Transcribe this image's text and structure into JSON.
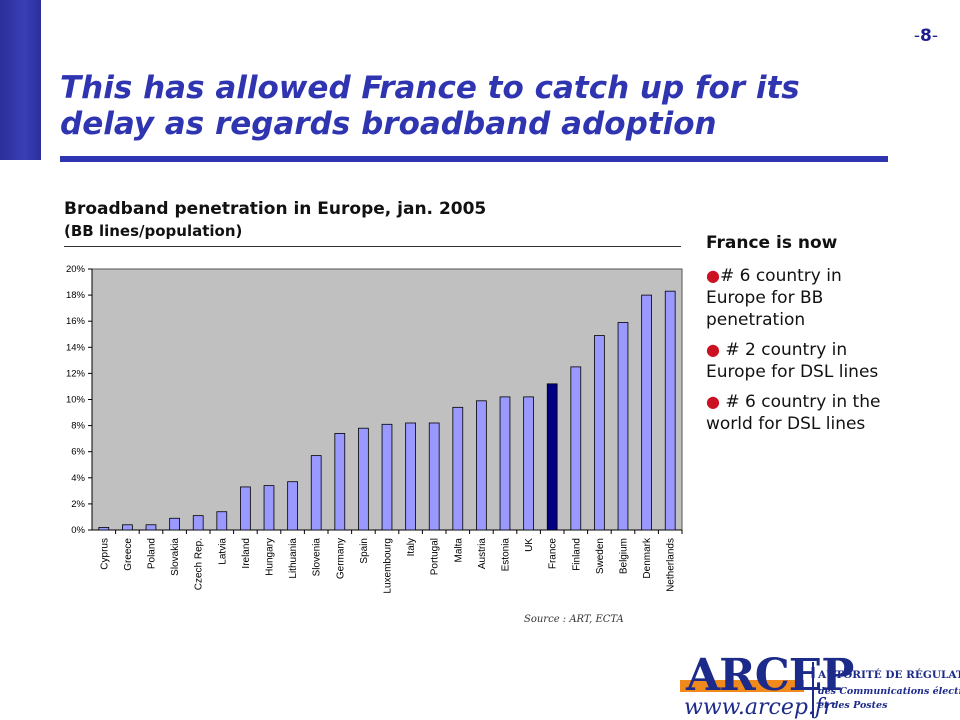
{
  "page_number": "8",
  "page_number_prefix": "-",
  "page_number_suffix": "-",
  "title": "This has allowed France to catch up for its delay as regards broadband adoption",
  "chart_heading": "Broadband penetration in Europe, jan. 2005",
  "chart_subheading": "(BB lines/population)",
  "source": "Source : ART, ECTA",
  "side_panel": {
    "heading": "France is now",
    "bullets": [
      "# 6 country in Europe for BB penetration",
      "# 2 country in Europe for DSL lines",
      "# 6 country in the world for DSL lines"
    ]
  },
  "logo": {
    "brand": "ARCEP",
    "tagline_1": "AUTORITÉ DE RÉGULATION",
    "tagline_2": "des Communications électroniques",
    "tagline_3": "et des Postes",
    "url": "www.arcep.fr"
  },
  "colors": {
    "bar": "#9999ff",
    "highlight_bar": "#000080",
    "plot_background": "#c0c0c0",
    "accent": "#2f34b0"
  },
  "chart_data": {
    "type": "bar",
    "title": "Broadband penetration in Europe, jan. 2005",
    "subtitle": "(BB lines/population)",
    "categories": [
      "Cyprus",
      "Greece",
      "Poland",
      "Slovakia",
      "Czech Rep.",
      "Latvia",
      "Ireland",
      "Hungary",
      "Lithuania",
      "Slovenia",
      "Germany",
      "Spain",
      "Luxembourg",
      "Italy",
      "Portugal",
      "Malta",
      "Austria",
      "Estonia",
      "UK",
      "France",
      "Finland",
      "Sweden",
      "Belgium",
      "Denmark",
      "Netherlands"
    ],
    "values": [
      0.2,
      0.4,
      0.4,
      0.9,
      1.1,
      1.4,
      3.3,
      3.4,
      3.7,
      5.7,
      7.4,
      7.8,
      8.1,
      8.2,
      8.2,
      9.4,
      9.9,
      10.2,
      10.2,
      11.2,
      12.5,
      14.9,
      15.9,
      18.0,
      18.3
    ],
    "highlight": "France",
    "ylim": [
      0,
      20
    ],
    "yticks": [
      "0%",
      "2%",
      "4%",
      "6%",
      "8%",
      "10%",
      "12%",
      "14%",
      "16%",
      "18%",
      "20%"
    ],
    "grid": false,
    "legend": "none"
  }
}
